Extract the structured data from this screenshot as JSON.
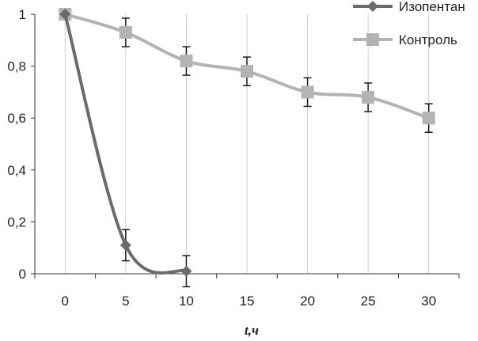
{
  "chart_data": {
    "type": "line",
    "title": "",
    "xlabel": "t,ч",
    "ylabel": "",
    "x": [
      0,
      5,
      10,
      15,
      20,
      25,
      30
    ],
    "x_tick_labels": [
      "0",
      "5",
      "10",
      "15",
      "20",
      "25",
      "30"
    ],
    "y_tick_labels": [
      "0",
      "0,2",
      "0,4",
      "0,6",
      "0,8",
      "1"
    ],
    "y_ticks": [
      0,
      0.2,
      0.4,
      0.6,
      0.8,
      1
    ],
    "xlim": [
      -2.5,
      32.5
    ],
    "ylim": [
      0,
      1
    ],
    "grid": "vertical",
    "legend_position": "top-right",
    "series": [
      {
        "name": "Изопентан",
        "color": "#6b6b6b",
        "marker": "diamond",
        "x": [
          0,
          5,
          10
        ],
        "values": [
          1.0,
          0.11,
          0.01
        ],
        "error": [
          0,
          0.06,
          0.06
        ]
      },
      {
        "name": "Контроль",
        "color": "#b3b3b3",
        "marker": "square",
        "x": [
          0,
          5,
          10,
          15,
          20,
          25,
          30
        ],
        "values": [
          1.0,
          0.93,
          0.82,
          0.78,
          0.7,
          0.68,
          0.6
        ],
        "error": [
          0,
          0.055,
          0.055,
          0.055,
          0.055,
          0.055,
          0.055
        ]
      }
    ]
  }
}
